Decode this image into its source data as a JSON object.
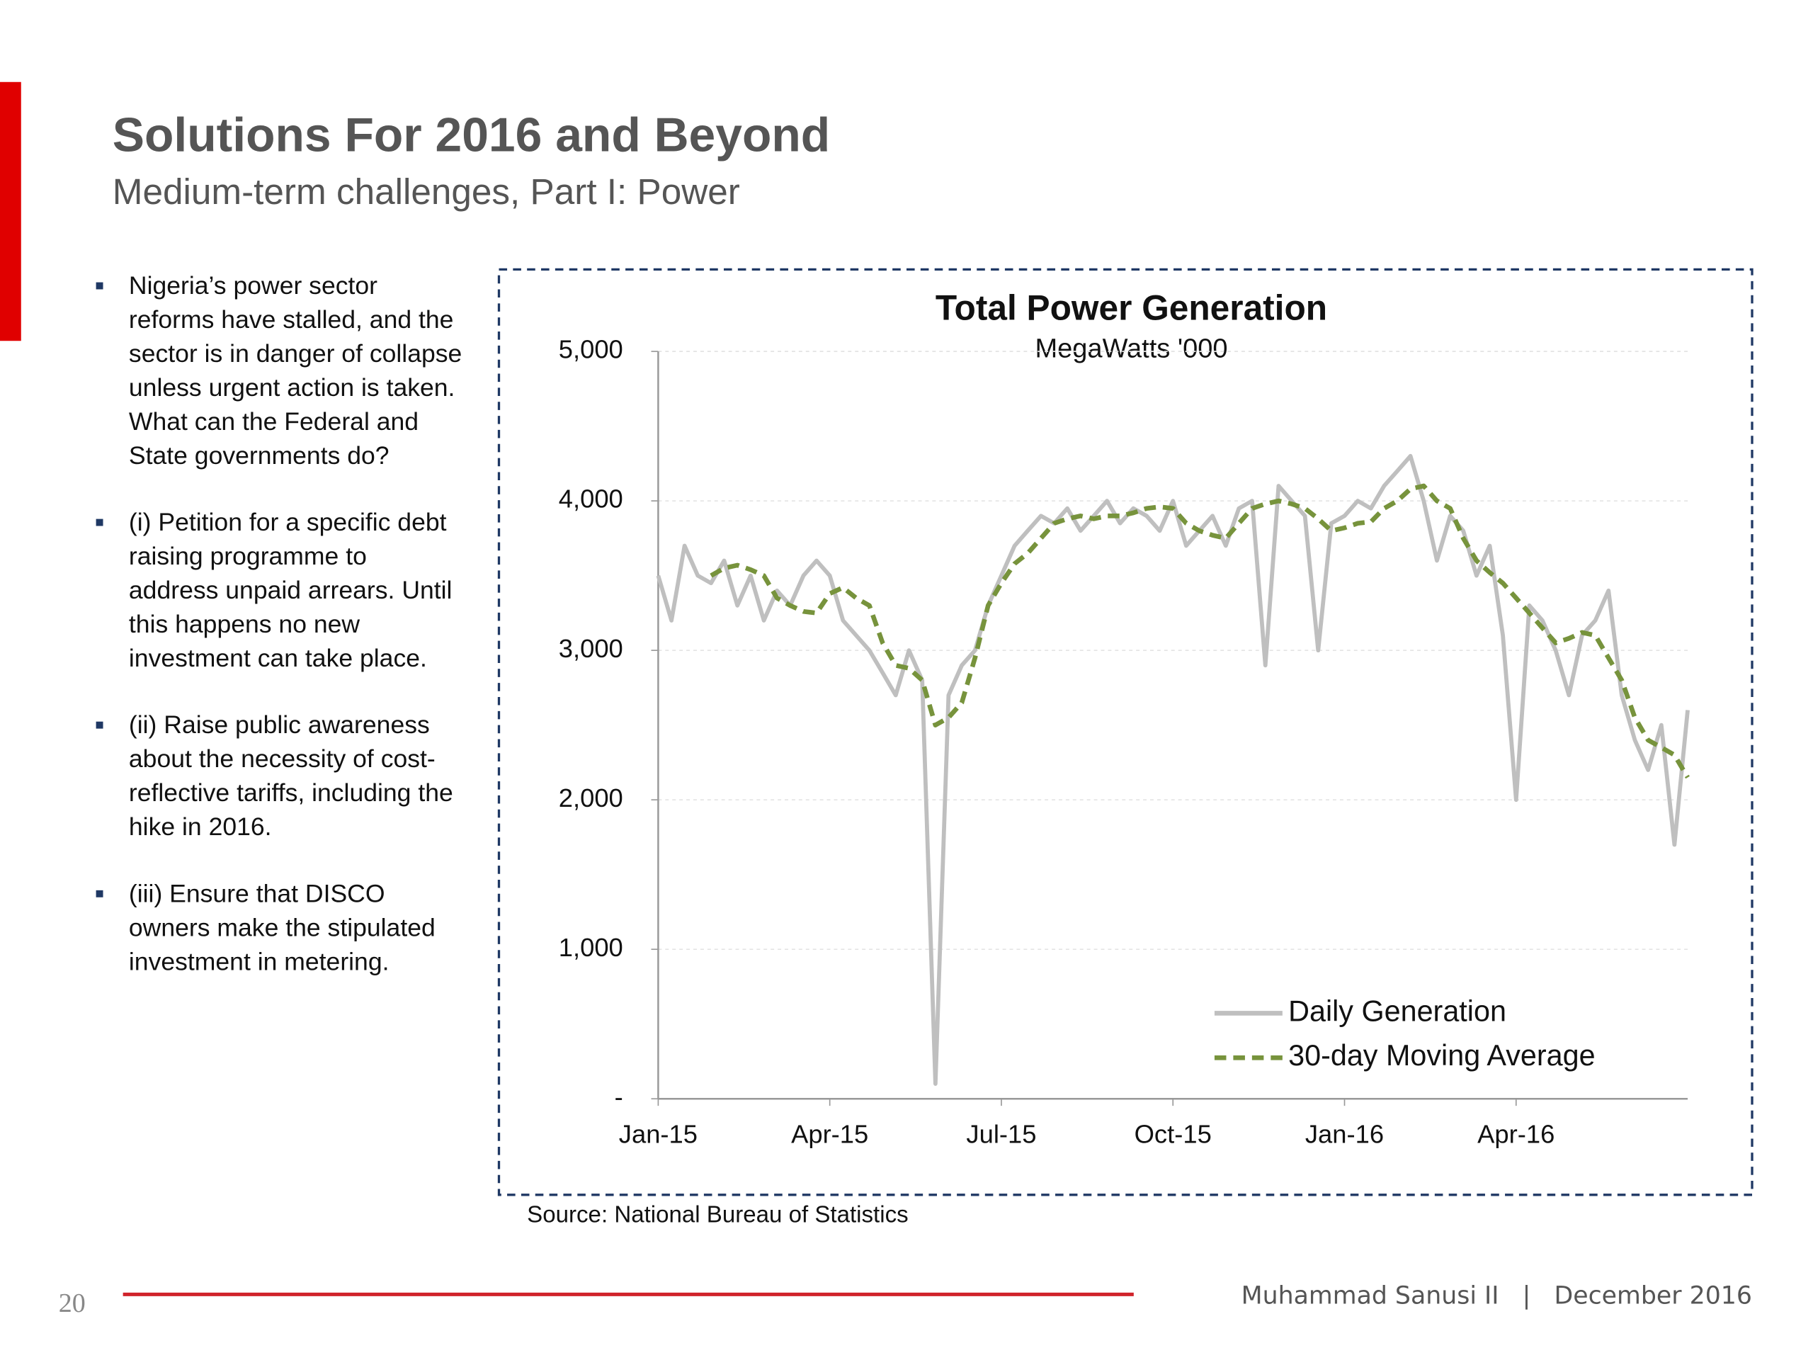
{
  "header": {
    "title": "Solutions For 2016 and Beyond",
    "subtitle": "Medium-term challenges, Part I: Power"
  },
  "bullets": [
    "Nigeria’s power sector reforms have stalled, and the sector is in danger of collapse unless urgent action is taken. What can the Federal and State governments do?",
    "(i) Petition for a specific debt raising programme to address unpaid arrears. Until this happens no new investment can take place.",
    "(ii) Raise public awareness about the necessity of cost-reflective tariffs, including the hike in 2016.",
    "(iii) Ensure that DISCO owners make the stipulated investment in metering."
  ],
  "chart_data": {
    "type": "line",
    "title": "Total Power Generation",
    "subtitle": "MegaWatts '000",
    "source": "Source: National Bureau of Statistics",
    "categories": [
      "Jan-15",
      null,
      null,
      null,
      null,
      null,
      null,
      null,
      null,
      null,
      null,
      null,
      null,
      "Apr-15",
      null,
      null,
      null,
      null,
      null,
      null,
      null,
      null,
      null,
      null,
      null,
      null,
      "Jul-15",
      null,
      null,
      null,
      null,
      null,
      null,
      null,
      null,
      null,
      null,
      null,
      null,
      "Oct-15",
      null,
      null,
      null,
      null,
      null,
      null,
      null,
      null,
      null,
      null,
      null,
      null,
      "Jan-16",
      null,
      null,
      null,
      null,
      null,
      null,
      null,
      null,
      null,
      null,
      null,
      null,
      "Apr-16",
      null,
      null,
      null,
      null,
      null,
      null,
      null,
      null,
      null,
      null,
      null,
      null,
      null
    ],
    "series": [
      {
        "name": "Daily Generation",
        "color": "#bfbfbf",
        "dash": false,
        "values": [
          3500,
          3200,
          3700,
          3500,
          3450,
          3600,
          3300,
          3500,
          3200,
          3400,
          3300,
          3500,
          3600,
          3500,
          3200,
          3100,
          3000,
          2850,
          2700,
          3000,
          2800,
          100,
          2700,
          2900,
          3000,
          3300,
          3500,
          3700,
          3800,
          3900,
          3850,
          3950,
          3800,
          3900,
          4000,
          3850,
          3950,
          3900,
          3800,
          4000,
          3700,
          3800,
          3900,
          3700,
          3950,
          4000,
          2900,
          4100,
          4000,
          3900,
          3000,
          3850,
          3900,
          4000,
          3950,
          4100,
          4200,
          4300,
          4000,
          3600,
          3900,
          3800,
          3500,
          3700,
          3100,
          2000,
          3300,
          3200,
          3000,
          2700,
          3100,
          3200,
          3400,
          2700,
          2400,
          2200,
          2500,
          1700,
          2600
        ]
      },
      {
        "name": "30-day Moving Average",
        "color": "#77933c",
        "dash": true,
        "values": [
          null,
          null,
          null,
          null,
          3500,
          3550,
          3570,
          3540,
          3500,
          3350,
          3300,
          3260,
          3250,
          3380,
          3420,
          3350,
          3300,
          3050,
          2900,
          2880,
          2800,
          2500,
          2550,
          2650,
          2950,
          3300,
          3450,
          3580,
          3650,
          3750,
          3850,
          3880,
          3900,
          3880,
          3900,
          3900,
          3920,
          3950,
          3960,
          3950,
          3850,
          3800,
          3770,
          3750,
          3850,
          3950,
          3980,
          4000,
          3980,
          3950,
          3880,
          3800,
          3820,
          3850,
          3860,
          3950,
          4000,
          4080,
          4100,
          4000,
          3950,
          3750,
          3600,
          3520,
          3450,
          3350,
          3250,
          3150,
          3050,
          3080,
          3120,
          3100,
          2950,
          2800,
          2550,
          2400,
          2350,
          2300,
          2150
        ]
      }
    ],
    "ylim": [
      0,
      5000
    ],
    "yticks": [
      {
        "value": 0,
        "label": "-"
      },
      {
        "value": 1000,
        "label": "1,000"
      },
      {
        "value": 2000,
        "label": "2,000"
      },
      {
        "value": 3000,
        "label": "3,000"
      },
      {
        "value": 4000,
        "label": "4,000"
      },
      {
        "value": 5000,
        "label": "5,000"
      }
    ],
    "grid": true,
    "legend": "lower right"
  },
  "footer": {
    "page": "20",
    "credit": "Muhammad Sanusi II   |   December 2016"
  }
}
